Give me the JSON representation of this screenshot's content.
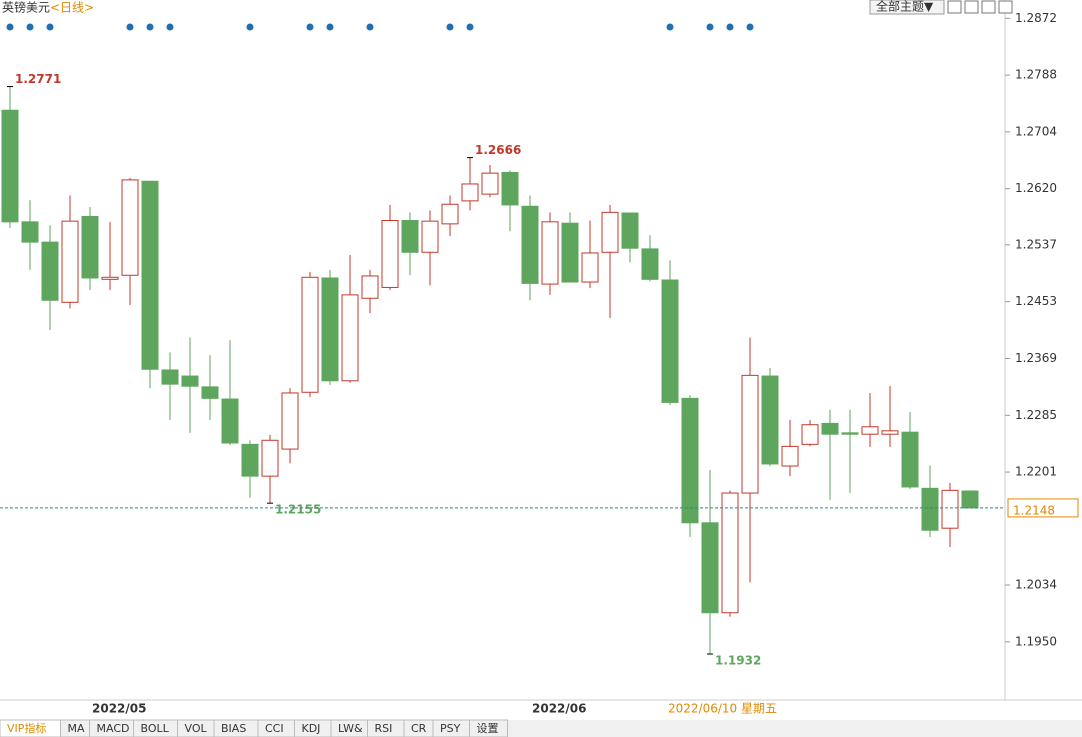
{
  "chart_data": {
    "type": "candlestick",
    "title": "英镑美元",
    "subtitle": "<日线>",
    "categories": [
      null,
      null,
      null,
      null,
      null,
      "2022/05",
      null,
      null,
      null,
      null,
      null,
      null,
      null,
      null,
      null,
      null,
      null,
      null,
      null,
      null,
      null,
      null,
      null,
      null,
      null,
      null,
      null,
      "2022/06",
      null,
      null,
      null,
      null,
      null,
      null,
      null,
      null,
      null,
      null,
      null,
      null,
      null,
      null,
      null,
      null,
      null,
      null,
      null,
      null,
      null
    ],
    "open": [
      1.2736,
      1.2571,
      1.2541,
      1.2452,
      1.2579,
      1.2486,
      1.2492,
      1.2631,
      1.2352,
      1.2343,
      1.2327,
      1.2309,
      1.2242,
      1.2195,
      1.2235,
      1.2319,
      1.2488,
      1.2336,
      1.2458,
      1.2474,
      1.2573,
      1.2526,
      1.2568,
      1.2602,
      1.2612,
      1.2644,
      1.2594,
      1.2479,
      1.2569,
      1.2482,
      1.2526,
      1.2584,
      1.2531,
      1.2485,
      1.231,
      1.2126,
      1.1993,
      1.217,
      1.2343,
      1.221,
      1.2242,
      1.2273,
      1.2259,
      1.2257,
      1.2257,
      1.226,
      1.2177,
      1.2118,
      1.2173
    ],
    "high": [
      1.2771,
      1.2603,
      1.2566,
      1.261,
      1.2593,
      1.2571,
      1.2636,
      1.2631,
      1.2378,
      1.24,
      1.2374,
      1.2396,
      1.2248,
      1.2256,
      1.2325,
      1.2497,
      1.25,
      1.2522,
      1.25,
      1.2596,
      1.2585,
      1.2588,
      1.261,
      1.2666,
      1.2655,
      1.2647,
      1.261,
      1.2585,
      1.2585,
      1.2573,
      1.2596,
      1.2585,
      1.2551,
      1.2514,
      1.2315,
      1.2204,
      1.2174,
      1.24,
      1.2355,
      1.2278,
      1.2278,
      1.2293,
      1.2293,
      1.2318,
      1.2328,
      1.229,
      1.2211,
      1.2185,
      1.2174
    ],
    "low": [
      1.2562,
      1.25,
      1.2411,
      1.2443,
      1.247,
      1.247,
      1.2448,
      1.2325,
      1.2278,
      1.2259,
      1.2278,
      1.2241,
      1.2163,
      1.2155,
      1.2214,
      1.2312,
      1.233,
      1.2333,
      1.2436,
      1.247,
      1.2492,
      1.2477,
      1.255,
      1.2588,
      1.2607,
      1.2557,
      1.2455,
      1.2463,
      1.2482,
      1.2473,
      1.2429,
      1.2511,
      1.2483,
      1.23,
      1.2105,
      1.1932,
      1.1987,
      1.2038,
      1.221,
      1.2195,
      1.2239,
      1.216,
      1.217,
      1.2238,
      1.2238,
      1.2176,
      1.2105,
      1.209,
      1.2148
    ],
    "close": [
      1.2571,
      1.2541,
      1.2455,
      1.2572,
      1.2488,
      1.2489,
      1.2633,
      1.2353,
      1.2331,
      1.2328,
      1.231,
      1.2244,
      1.2195,
      1.2248,
      1.2318,
      1.2489,
      1.2336,
      1.2463,
      1.2491,
      1.2573,
      1.2526,
      1.2572,
      1.2597,
      1.2627,
      1.2643,
      1.2596,
      1.248,
      1.2571,
      1.2482,
      1.2525,
      1.2585,
      1.2532,
      1.2486,
      1.2304,
      1.2126,
      1.1993,
      1.217,
      1.2344,
      1.2213,
      1.2239,
      1.2271,
      1.2257,
      1.2257,
      1.2268,
      1.2262,
      1.2179,
      1.2115,
      1.2174,
      1.2148
    ],
    "up_color": "#c0392b",
    "down_color": "#5ea65e",
    "ylim": [
      1.1864,
      1.2899
    ],
    "yticks": [
      1.2872,
      1.2788,
      1.2704,
      {
        "value": 1.262,
        "label": "1.2620"
      },
      1.2537,
      1.2453,
      1.2369,
      1.2285,
      1.2201,
      1.2034,
      {
        "value": 1.195,
        "label": "1.1950"
      }
    ],
    "event_markers": [
      0,
      1,
      2,
      6,
      7,
      8,
      12,
      15,
      16,
      18,
      22,
      23,
      33,
      35,
      36,
      37
    ],
    "crosshair_date": "2022/06/10 星期五"
  },
  "ui": {
    "theme_button": "全部主题▼",
    "tabs": [
      "VIP指标",
      "MA",
      "MACD",
      "BOLL",
      "VOL",
      "BIAS",
      "CCI",
      "KDJ",
      "LW&",
      "RSI",
      "CR",
      "PSY",
      "设置"
    ]
  }
}
